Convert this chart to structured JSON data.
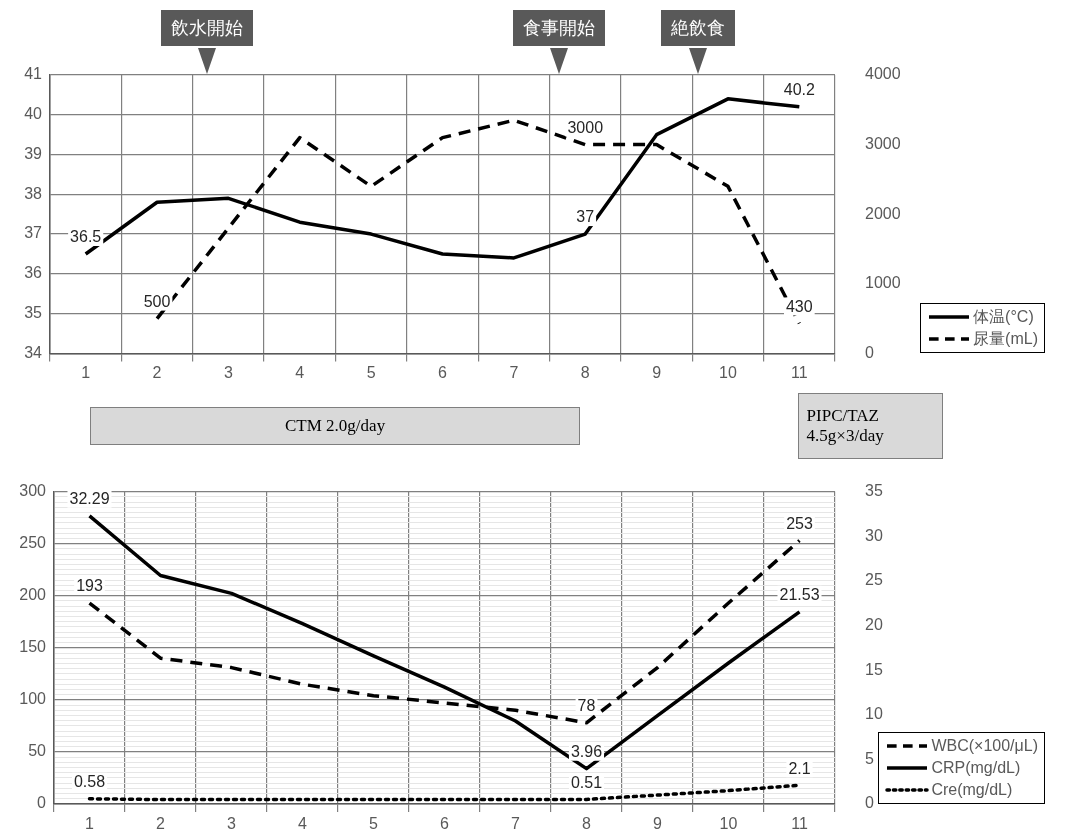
{
  "chart_data": [
    {
      "type": "line",
      "categories": [
        "1",
        "2",
        "3",
        "4",
        "5",
        "6",
        "7",
        "8",
        "9",
        "10",
        "11"
      ],
      "series": [
        {
          "name": "体温(°C)",
          "color": "#000000",
          "line_style": "solid",
          "values": [
            36.5,
            37.8,
            37.9,
            37.3,
            37.0,
            36.5,
            36.4,
            37.0,
            39.5,
            40.4,
            40.2
          ],
          "value_labels": [
            "36.5",
            null,
            null,
            null,
            null,
            null,
            null,
            "37",
            null,
            null,
            "40.2"
          ]
        },
        {
          "name": "尿量(mL)",
          "color": "#000000",
          "line_style": "dashed",
          "axis": "y2",
          "values": [
            null,
            500,
            1800,
            3100,
            2400,
            3100,
            3350,
            3000,
            3000,
            2400,
            430
          ],
          "value_labels": [
            null,
            "500",
            null,
            null,
            null,
            null,
            null,
            "3000",
            null,
            null,
            "430"
          ]
        }
      ],
      "ylim": [
        34,
        41
      ],
      "yticks": [
        34,
        35,
        36,
        37,
        38,
        39,
        40,
        41
      ],
      "y2lim": [
        0,
        4000
      ],
      "y2ticks": [
        0,
        1000,
        2000,
        3000,
        4000
      ],
      "grid": true,
      "legend": "bottom right",
      "marker": "none",
      "annotations": [
        "飲水開始",
        "食事開始",
        "絶飲食",
        "CTM 2.0g/day",
        "PIPC/TAZ 4.5g×3/day"
      ]
    },
    {
      "type": "line",
      "categories": [
        "1",
        "2",
        "3",
        "4",
        "5",
        "6",
        "7",
        "8",
        "9",
        "10",
        "11"
      ],
      "series": [
        {
          "name": "WBC(×100/μL)",
          "color": "#000000",
          "line_style": "dashed",
          "values": [
            193,
            140,
            131,
            115,
            104,
            97,
            90,
            78,
            131,
            193,
            253
          ],
          "value_labels": [
            "193",
            null,
            null,
            null,
            null,
            null,
            null,
            "78",
            null,
            null,
            "253"
          ]
        },
        {
          "name": "CRP(mg/dL)",
          "color": "#000000",
          "line_style": "solid",
          "axis": "y2",
          "values": [
            32.29,
            25.6,
            23.6,
            20.2,
            16.6,
            13.1,
            9.3,
            3.96,
            9.9,
            15.8,
            21.53
          ],
          "value_labels": [
            "32.29",
            null,
            null,
            null,
            null,
            null,
            null,
            "3.96",
            null,
            null,
            "21.53"
          ]
        },
        {
          "name": "Cre(mg/dL)",
          "color": "#000000",
          "line_style": "dotted",
          "axis": "y2",
          "values": [
            0.58,
            0.5,
            0.5,
            0.5,
            0.5,
            0.5,
            0.5,
            0.51,
            1.0,
            1.5,
            2.1
          ],
          "value_labels": [
            "0.58",
            null,
            null,
            null,
            null,
            null,
            null,
            "0.51",
            null,
            null,
            "2.1"
          ]
        }
      ],
      "ylim": [
        0,
        300
      ],
      "yticks": [
        0,
        {
          "value": 5,
          "label": null
        },
        {
          "value": 10,
          "label": null
        },
        {
          "value": 15,
          "label": null
        },
        {
          "value": 20,
          "label": null
        },
        {
          "value": 25,
          "label": null
        },
        {
          "value": 30,
          "label": null
        },
        {
          "value": 35,
          "label": null
        },
        {
          "value": 40,
          "label": null
        },
        {
          "value": 45,
          "label": null
        },
        50,
        {
          "value": 55,
          "label": null
        },
        {
          "value": 60,
          "label": null
        },
        {
          "value": 65,
          "label": null
        },
        {
          "value": 70,
          "label": null
        },
        {
          "value": 75,
          "label": null
        },
        {
          "value": 80,
          "label": null
        },
        {
          "value": 85,
          "label": null
        },
        {
          "value": 90,
          "label": null
        },
        {
          "value": 95,
          "label": null
        },
        100,
        {
          "value": 105,
          "label": null
        },
        {
          "value": 110,
          "label": null
        },
        {
          "value": 115,
          "label": null
        },
        {
          "value": 120,
          "label": null
        },
        {
          "value": 125,
          "label": null
        },
        {
          "value": 130,
          "label": null
        },
        {
          "value": 135,
          "label": null
        },
        {
          "value": 140,
          "label": null
        },
        {
          "value": 145,
          "label": null
        },
        150,
        {
          "value": 155,
          "label": null
        },
        {
          "value": 160,
          "label": null
        },
        {
          "value": 165,
          "label": null
        },
        {
          "value": 170,
          "label": null
        },
        {
          "value": 175,
          "label": null
        },
        {
          "value": 180,
          "label": null
        },
        {
          "value": 185,
          "label": null
        },
        {
          "value": 190,
          "label": null
        },
        {
          "value": 195,
          "label": null
        },
        200,
        {
          "value": 205,
          "label": null
        },
        {
          "value": 210,
          "label": null
        },
        {
          "value": 215,
          "label": null
        },
        {
          "value": 220,
          "label": null
        },
        {
          "value": 225,
          "label": null
        },
        {
          "value": 230,
          "label": null
        },
        {
          "value": 235,
          "label": null
        },
        {
          "value": 240,
          "label": null
        },
        {
          "value": 245,
          "label": null
        },
        250,
        {
          "value": 255,
          "label": null
        },
        {
          "value": 260,
          "label": null
        },
        {
          "value": 265,
          "label": null
        },
        {
          "value": 270,
          "label": null
        },
        {
          "value": 275,
          "label": null
        },
        {
          "value": 280,
          "label": null
        },
        {
          "value": 285,
          "label": null
        },
        {
          "value": 290,
          "label": null
        },
        {
          "value": 295,
          "label": null
        },
        300
      ],
      "y2lim": [
        0,
        35
      ],
      "y2ticks": [
        0,
        5,
        10,
        15,
        20,
        25,
        30,
        35
      ],
      "grid": true,
      "legend": "bottom right",
      "marker": "none"
    }
  ]
}
